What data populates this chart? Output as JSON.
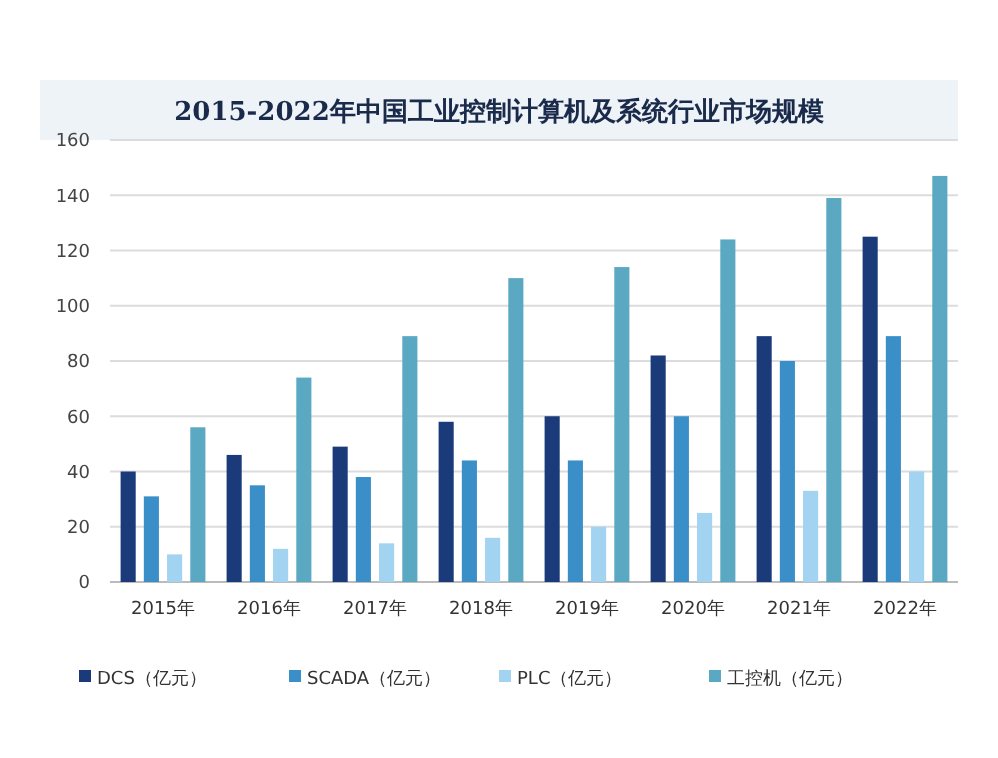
{
  "chart_data": {
    "type": "bar",
    "title": "2015-2022年中国工业控制计算机及系统行业市场规模",
    "categories": [
      "2015年",
      "2016年",
      "2017年",
      "2018年",
      "2019年",
      "2020年",
      "2021年",
      "2022年"
    ],
    "series": [
      {
        "name": "DCS（亿元）",
        "color": "#1b3a7a",
        "values": [
          40,
          46,
          49,
          58,
          60,
          82,
          89,
          125
        ]
      },
      {
        "name": "SCADA（亿元）",
        "color": "#3a8fc8",
        "values": [
          31,
          35,
          38,
          44,
          44,
          60,
          80,
          89
        ]
      },
      {
        "name": "PLC（亿元）",
        "color": "#a2d3f0",
        "values": [
          10,
          12,
          14,
          16,
          20,
          25,
          33,
          40
        ]
      },
      {
        "name": "工控机（亿元）",
        "color": "#5aa8c2",
        "values": [
          56,
          74,
          89,
          110,
          114,
          124,
          139,
          147
        ]
      }
    ],
    "ylim": [
      0,
      160
    ],
    "yticks": [
      0,
      20,
      40,
      60,
      80,
      100,
      120,
      140,
      160
    ],
    "grid": "y",
    "legend": "bottom"
  }
}
